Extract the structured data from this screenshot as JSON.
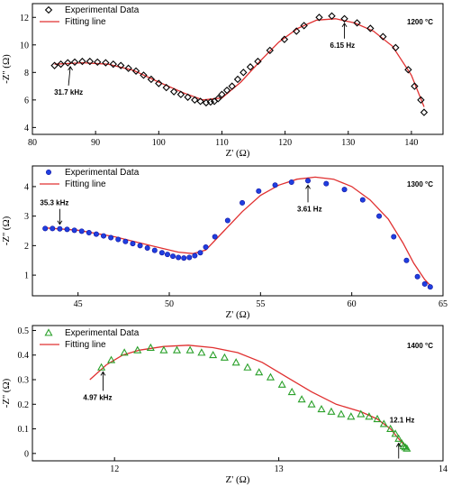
{
  "chart_data": [
    {
      "type": "scatter",
      "temperature_label": "1200 °C",
      "xlabel": "Z' (Ω)",
      "ylabel": "-Z'' (Ω)",
      "xlim": [
        80,
        145
      ],
      "ylim": [
        3.5,
        13
      ],
      "xticks": [
        80,
        90,
        100,
        110,
        120,
        130,
        140
      ],
      "yticks": [
        4,
        6,
        8,
        10,
        12
      ],
      "legend_position": "top-left",
      "marker": "diamond",
      "marker_color": "#000000",
      "fit_color": "#e03030",
      "series": [
        {
          "name": "Experimental Data",
          "x": [
            83.5,
            84.5,
            85.6,
            86.7,
            87.9,
            89.1,
            90.3,
            91.6,
            92.8,
            94.0,
            95.2,
            96.4,
            97.6,
            98.8,
            100.0,
            101.2,
            102.4,
            103.5,
            104.6,
            105.7,
            106.6,
            107.5,
            108.2,
            108.8,
            109.4,
            110.0,
            110.8,
            111.6,
            112.5,
            113.4,
            114.5,
            115.7,
            117.6,
            119.9,
            121.8,
            123.0,
            125.4,
            127.4,
            129.4,
            131.4,
            133.5,
            135.5,
            137.5,
            139.5,
            140.5,
            141.5,
            142.0
          ],
          "y": [
            8.5,
            8.6,
            8.7,
            8.75,
            8.8,
            8.8,
            8.75,
            8.7,
            8.6,
            8.5,
            8.3,
            8.1,
            7.8,
            7.5,
            7.2,
            6.9,
            6.6,
            6.4,
            6.2,
            6.0,
            5.9,
            5.8,
            5.85,
            5.9,
            6.1,
            6.4,
            6.7,
            7.0,
            7.5,
            8.0,
            8.4,
            8.8,
            9.6,
            10.4,
            11.0,
            11.4,
            12.0,
            12.1,
            11.9,
            11.6,
            11.2,
            10.6,
            9.8,
            8.2,
            7.0,
            6.0,
            5.1
          ]
        },
        {
          "name": "Fitting line",
          "x": [
            83.5,
            88,
            92,
            96,
            100,
            104,
            107,
            110,
            113,
            116,
            119,
            122,
            125,
            128,
            131,
            134,
            137,
            140,
            142
          ],
          "y": [
            8.6,
            8.7,
            8.6,
            8.15,
            7.3,
            6.5,
            6.0,
            6.15,
            7.3,
            8.8,
            10.2,
            11.2,
            11.8,
            11.9,
            11.6,
            11.0,
            9.9,
            7.8,
            5.5
          ]
        }
      ],
      "annotations": [
        {
          "text": "31.7 kHz",
          "x": 86,
          "y": 8.75
        },
        {
          "text": "6.15 Hz",
          "x": 129.4,
          "y": 11.9
        }
      ]
    },
    {
      "type": "scatter",
      "temperature_label": "1300 °C",
      "xlabel": "Z' (Ω)",
      "ylabel": "-Z'' (Ω)",
      "xlim": [
        42.5,
        65
      ],
      "ylim": [
        0.3,
        4.7
      ],
      "xticks": [
        45,
        50,
        55,
        60,
        65
      ],
      "yticks": [
        1,
        2,
        3,
        4
      ],
      "legend_position": "top-left",
      "marker": "circle",
      "marker_color": "#1f3fe0",
      "fit_color": "#e03030",
      "series": [
        {
          "name": "Experimental Data",
          "x": [
            43.2,
            43.6,
            44.0,
            44.4,
            44.8,
            45.2,
            45.6,
            46.0,
            46.4,
            46.8,
            47.2,
            47.6,
            48.0,
            48.4,
            48.8,
            49.2,
            49.6,
            49.9,
            50.2,
            50.5,
            50.8,
            51.1,
            51.4,
            51.7,
            52.0,
            52.5,
            53.2,
            54.0,
            54.9,
            55.8,
            56.7,
            57.6,
            58.6,
            59.6,
            60.6,
            61.5,
            62.3,
            63.0,
            63.6,
            64.0,
            64.3
          ],
          "y": [
            2.58,
            2.58,
            2.57,
            2.55,
            2.52,
            2.49,
            2.44,
            2.39,
            2.33,
            2.27,
            2.21,
            2.14,
            2.07,
            2.0,
            1.92,
            1.84,
            1.76,
            1.7,
            1.64,
            1.6,
            1.58,
            1.6,
            1.66,
            1.76,
            1.95,
            2.3,
            2.85,
            3.45,
            3.85,
            4.05,
            4.15,
            4.2,
            4.1,
            3.9,
            3.55,
            3.0,
            2.3,
            1.5,
            0.95,
            0.7,
            0.6
          ]
        },
        {
          "name": "Fitting line",
          "x": [
            43.2,
            45,
            47,
            49,
            50.5,
            51.3,
            52,
            53,
            54,
            55,
            56,
            57,
            58,
            59,
            60,
            61,
            62,
            62.8,
            63.4,
            64,
            64.3
          ],
          "y": [
            2.6,
            2.52,
            2.3,
            2.0,
            1.78,
            1.73,
            1.85,
            2.5,
            3.15,
            3.7,
            4.05,
            4.25,
            4.32,
            4.25,
            4.0,
            3.55,
            2.9,
            2.1,
            1.4,
            0.85,
            0.65
          ]
        }
      ],
      "annotations": [
        {
          "text": "35.3 kHz",
          "x": 44.0,
          "y": 2.57
        },
        {
          "text": "3.61 Hz",
          "x": 57.6,
          "y": 4.2
        }
      ]
    },
    {
      "type": "scatter",
      "temperature_label": "1400 °C",
      "xlabel": "Z' (Ω)",
      "ylabel": "-Z'' (Ω)",
      "xlim": [
        11.5,
        14
      ],
      "ylim": [
        -0.03,
        0.52
      ],
      "xticks": [
        12,
        13,
        14
      ],
      "yticks": [
        0.0,
        0.1,
        0.2,
        0.3,
        0.4,
        0.5
      ],
      "legend_position": "top-left",
      "marker": "triangle",
      "marker_color": "#2aa02a",
      "fit_color": "#e03030",
      "series": [
        {
          "name": "Experimental Data",
          "x": [
            11.92,
            11.98,
            12.06,
            12.14,
            12.22,
            12.3,
            12.38,
            12.46,
            12.53,
            12.6,
            12.67,
            12.74,
            12.81,
            12.88,
            12.95,
            13.02,
            13.08,
            13.14,
            13.2,
            13.26,
            13.32,
            13.38,
            13.44,
            13.5,
            13.55,
            13.6,
            13.64,
            13.68,
            13.71,
            13.73,
            13.75,
            13.76,
            13.77,
            13.78
          ],
          "y": [
            0.35,
            0.38,
            0.41,
            0.42,
            0.43,
            0.42,
            0.42,
            0.42,
            0.41,
            0.4,
            0.39,
            0.37,
            0.35,
            0.33,
            0.31,
            0.28,
            0.25,
            0.22,
            0.2,
            0.18,
            0.17,
            0.16,
            0.15,
            0.16,
            0.15,
            0.14,
            0.12,
            0.1,
            0.08,
            0.06,
            0.04,
            0.03,
            0.025,
            0.02
          ]
        },
        {
          "name": "Fitting line",
          "x": [
            11.85,
            11.95,
            12.05,
            12.15,
            12.3,
            12.45,
            12.6,
            12.75,
            12.9,
            13.05,
            13.2,
            13.35,
            13.5,
            13.6,
            13.68,
            13.73,
            13.77
          ],
          "y": [
            0.3,
            0.36,
            0.4,
            0.42,
            0.435,
            0.44,
            0.43,
            0.41,
            0.37,
            0.31,
            0.25,
            0.2,
            0.17,
            0.14,
            0.1,
            0.06,
            0.03
          ]
        }
      ],
      "annotations": [
        {
          "text": "4.97 kHz",
          "x": 11.93,
          "y": 0.35
        },
        {
          "text": "12.1 Hz",
          "x": 13.73,
          "y": 0.06
        }
      ]
    }
  ]
}
